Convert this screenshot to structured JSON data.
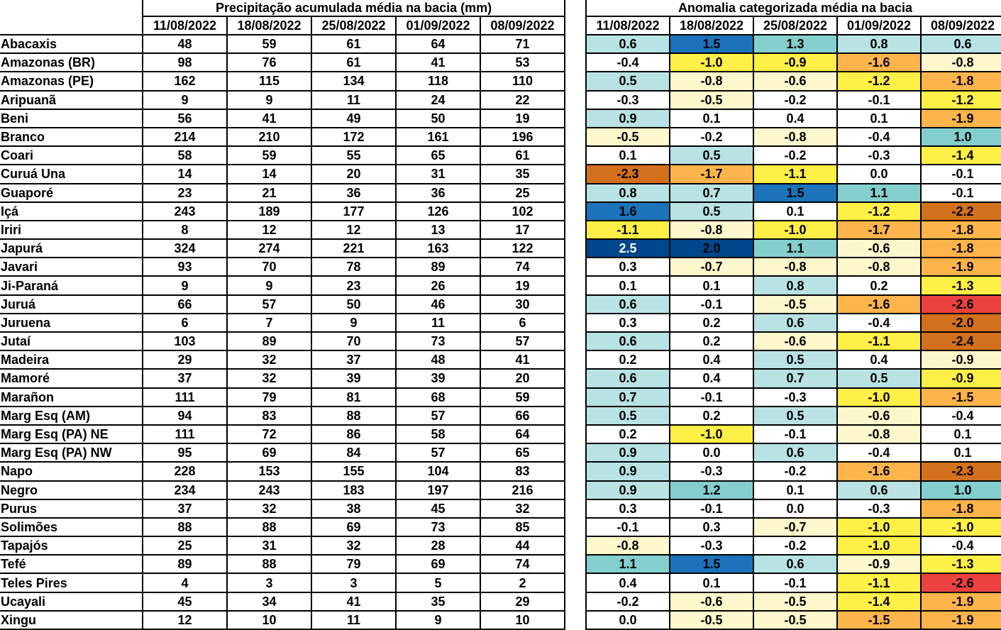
{
  "left_table": {
    "title": "Precipitação acumulada média na bacia (mm)",
    "dates": [
      "11/08/2022",
      "18/08/2022",
      "25/08/2022",
      "01/09/2022",
      "08/09/2022"
    ]
  },
  "right_table": {
    "title": "Anomalia categorizada média na bacia",
    "dates": [
      "11/08/2022",
      "18/08/2022",
      "25/08/2022",
      "01/09/2022",
      "08/09/2022"
    ]
  },
  "colors": {
    "white": "#ffffff",
    "lightyellow": "#fff8cc",
    "yellow": "#ffef47",
    "orange": "#fcb44b",
    "darkorange": "#d2701c",
    "red": "#ec423f",
    "lightcyan": "#b8e2e3",
    "cyan": "#84cece",
    "blue": "#1c73b9",
    "navy": "#00468a"
  },
  "rows": [
    {
      "name": "Abacaxis",
      "precip": [
        "48",
        "59",
        "61",
        "64",
        "71"
      ],
      "anom": [
        "0.6",
        "1.5",
        "1.3",
        "0.8",
        "0.6"
      ],
      "cls": [
        "lightcyan",
        "blue",
        "cyan",
        "lightcyan",
        "lightcyan"
      ]
    },
    {
      "name": "Amazonas (BR)",
      "precip": [
        "98",
        "76",
        "61",
        "41",
        "53"
      ],
      "anom": [
        "-0.4",
        "-1.0",
        "-0.9",
        "-1.6",
        "-0.8"
      ],
      "cls": [
        "white",
        "yellow",
        "yellow",
        "orange",
        "lightyellow"
      ]
    },
    {
      "name": "Amazonas (PE)",
      "precip": [
        "162",
        "115",
        "134",
        "118",
        "110"
      ],
      "anom": [
        "0.5",
        "-0.8",
        "-0.6",
        "-1.2",
        "-1.8"
      ],
      "cls": [
        "lightcyan",
        "lightyellow",
        "lightyellow",
        "yellow",
        "orange"
      ]
    },
    {
      "name": "Aripuanã",
      "precip": [
        "9",
        "9",
        "11",
        "24",
        "22"
      ],
      "anom": [
        "-0.3",
        "-0.5",
        "-0.2",
        "-0.1",
        "-1.2"
      ],
      "cls": [
        "white",
        "lightyellow",
        "white",
        "white",
        "yellow"
      ]
    },
    {
      "name": "Beni",
      "precip": [
        "56",
        "41",
        "49",
        "50",
        "19"
      ],
      "anom": [
        "0.9",
        "0.1",
        "0.4",
        "0.1",
        "-1.9"
      ],
      "cls": [
        "lightcyan",
        "white",
        "white",
        "white",
        "orange"
      ]
    },
    {
      "name": "Branco",
      "precip": [
        "214",
        "210",
        "172",
        "161",
        "196"
      ],
      "anom": [
        "-0.5",
        "-0.2",
        "-0.8",
        "-0.4",
        "1.0"
      ],
      "cls": [
        "lightyellow",
        "white",
        "lightyellow",
        "white",
        "cyan"
      ]
    },
    {
      "name": "Coari",
      "precip": [
        "58",
        "59",
        "55",
        "65",
        "61"
      ],
      "anom": [
        "0.1",
        "0.5",
        "-0.2",
        "-0.3",
        "-1.4"
      ],
      "cls": [
        "white",
        "lightcyan",
        "white",
        "white",
        "yellow"
      ]
    },
    {
      "name": "Curuá Una",
      "precip": [
        "14",
        "14",
        "20",
        "31",
        "35"
      ],
      "anom": [
        "-2.3",
        "-1.7",
        "-1.1",
        "0.0",
        "-0.1"
      ],
      "cls": [
        "darkorange",
        "orange",
        "yellow",
        "white",
        "white"
      ]
    },
    {
      "name": "Guaporé",
      "precip": [
        "23",
        "21",
        "36",
        "36",
        "25"
      ],
      "anom": [
        "0.8",
        "0.7",
        "1.5",
        "1.1",
        "-0.1"
      ],
      "cls": [
        "lightcyan",
        "lightcyan",
        "blue",
        "cyan",
        "white"
      ]
    },
    {
      "name": "Içá",
      "precip": [
        "243",
        "189",
        "177",
        "126",
        "102"
      ],
      "anom": [
        "1.6",
        "0.5",
        "0.1",
        "-1.2",
        "-2.2"
      ],
      "cls": [
        "blue",
        "lightcyan",
        "white",
        "yellow",
        "darkorange"
      ]
    },
    {
      "name": "Iriri",
      "precip": [
        "8",
        "12",
        "12",
        "13",
        "17"
      ],
      "anom": [
        "-1.1",
        "-0.8",
        "-1.0",
        "-1.7",
        "-1.8"
      ],
      "cls": [
        "yellow",
        "lightyellow",
        "yellow",
        "orange",
        "orange"
      ]
    },
    {
      "name": "Japurá",
      "precip": [
        "324",
        "274",
        "221",
        "163",
        "122"
      ],
      "anom": [
        "2.5",
        "2.0",
        "1.1",
        "-0.6",
        "-1.8"
      ],
      "cls": [
        "navy",
        "navy",
        "cyan",
        "lightyellow",
        "orange"
      ]
    },
    {
      "name": "Javari",
      "precip": [
        "93",
        "70",
        "78",
        "89",
        "74"
      ],
      "anom": [
        "0.3",
        "-0.7",
        "-0.8",
        "-0.8",
        "-1.9"
      ],
      "cls": [
        "white",
        "lightyellow",
        "lightyellow",
        "lightyellow",
        "orange"
      ]
    },
    {
      "name": "Ji-Paraná",
      "precip": [
        "9",
        "9",
        "23",
        "26",
        "19"
      ],
      "anom": [
        "0.1",
        "0.1",
        "0.8",
        "0.2",
        "-1.3"
      ],
      "cls": [
        "white",
        "white",
        "lightcyan",
        "white",
        "yellow"
      ]
    },
    {
      "name": "Juruá",
      "precip": [
        "66",
        "57",
        "50",
        "46",
        "30"
      ],
      "anom": [
        "0.6",
        "-0.1",
        "-0.5",
        "-1.6",
        "-2.6"
      ],
      "cls": [
        "lightcyan",
        "white",
        "lightyellow",
        "orange",
        "red"
      ]
    },
    {
      "name": "Juruena",
      "precip": [
        "6",
        "7",
        "9",
        "11",
        "6"
      ],
      "anom": [
        "0.3",
        "0.2",
        "0.6",
        "-0.4",
        "-2.0"
      ],
      "cls": [
        "white",
        "white",
        "lightcyan",
        "white",
        "darkorange"
      ]
    },
    {
      "name": "Jutaí",
      "precip": [
        "103",
        "89",
        "70",
        "73",
        "57"
      ],
      "anom": [
        "0.6",
        "0.2",
        "-0.6",
        "-1.1",
        "-2.4"
      ],
      "cls": [
        "lightcyan",
        "white",
        "lightyellow",
        "yellow",
        "darkorange"
      ]
    },
    {
      "name": "Madeira",
      "precip": [
        "29",
        "32",
        "37",
        "48",
        "41"
      ],
      "anom": [
        "0.2",
        "0.4",
        "0.5",
        "0.4",
        "-0.9"
      ],
      "cls": [
        "white",
        "white",
        "lightcyan",
        "white",
        "lightyellow"
      ]
    },
    {
      "name": "Mamoré",
      "precip": [
        "37",
        "32",
        "39",
        "39",
        "20"
      ],
      "anom": [
        "0.6",
        "0.4",
        "0.7",
        "0.5",
        "-0.9"
      ],
      "cls": [
        "lightcyan",
        "white",
        "lightcyan",
        "lightcyan",
        "yellow"
      ]
    },
    {
      "name": "Marañon",
      "precip": [
        "111",
        "79",
        "81",
        "68",
        "59"
      ],
      "anom": [
        "0.7",
        "-0.1",
        "-0.3",
        "-1.0",
        "-1.5"
      ],
      "cls": [
        "lightcyan",
        "white",
        "white",
        "yellow",
        "orange"
      ]
    },
    {
      "name": "Marg Esq (AM)",
      "precip": [
        "94",
        "83",
        "88",
        "57",
        "66"
      ],
      "anom": [
        "0.5",
        "0.2",
        "0.5",
        "-0.6",
        "-0.4"
      ],
      "cls": [
        "lightcyan",
        "white",
        "lightcyan",
        "lightyellow",
        "white"
      ]
    },
    {
      "name": "Marg Esq (PA) NE",
      "precip": [
        "111",
        "72",
        "86",
        "58",
        "64"
      ],
      "anom": [
        "0.2",
        "-1.0",
        "-0.1",
        "-0.8",
        "0.1"
      ],
      "cls": [
        "white",
        "yellow",
        "white",
        "lightyellow",
        "white"
      ]
    },
    {
      "name": "Marg Esq (PA) NW",
      "precip": [
        "95",
        "69",
        "84",
        "57",
        "65"
      ],
      "anom": [
        "0.9",
        "0.0",
        "0.6",
        "-0.4",
        "0.1"
      ],
      "cls": [
        "lightcyan",
        "white",
        "lightcyan",
        "white",
        "white"
      ]
    },
    {
      "name": "Napo",
      "precip": [
        "228",
        "153",
        "155",
        "104",
        "83"
      ],
      "anom": [
        "0.9",
        "-0.3",
        "-0.2",
        "-1.6",
        "-2.3"
      ],
      "cls": [
        "lightcyan",
        "white",
        "white",
        "orange",
        "darkorange"
      ]
    },
    {
      "name": "Negro",
      "precip": [
        "234",
        "243",
        "183",
        "197",
        "216"
      ],
      "anom": [
        "0.9",
        "1.2",
        "0.1",
        "0.6",
        "1.0"
      ],
      "cls": [
        "lightcyan",
        "cyan",
        "white",
        "lightcyan",
        "cyan"
      ]
    },
    {
      "name": "Purus",
      "precip": [
        "37",
        "32",
        "38",
        "45",
        "32"
      ],
      "anom": [
        "0.3",
        "-0.1",
        "0.0",
        "-0.3",
        "-1.8"
      ],
      "cls": [
        "white",
        "white",
        "white",
        "white",
        "orange"
      ]
    },
    {
      "name": "Solimões",
      "precip": [
        "88",
        "88",
        "69",
        "73",
        "85"
      ],
      "anom": [
        "-0.1",
        "0.3",
        "-0.7",
        "-1.0",
        "-1.0"
      ],
      "cls": [
        "white",
        "white",
        "lightyellow",
        "yellow",
        "yellow"
      ]
    },
    {
      "name": "Tapajós",
      "precip": [
        "25",
        "31",
        "32",
        "28",
        "44"
      ],
      "anom": [
        "-0.8",
        "-0.3",
        "-0.2",
        "-1.0",
        "-0.4"
      ],
      "cls": [
        "lightyellow",
        "white",
        "white",
        "yellow",
        "white"
      ]
    },
    {
      "name": "Tefé",
      "precip": [
        "89",
        "88",
        "79",
        "69",
        "74"
      ],
      "anom": [
        "1.1",
        "1.5",
        "0.6",
        "-0.9",
        "-1.3"
      ],
      "cls": [
        "cyan",
        "blue",
        "lightcyan",
        "lightyellow",
        "yellow"
      ]
    },
    {
      "name": "Teles Pires",
      "precip": [
        "4",
        "3",
        "3",
        "5",
        "2"
      ],
      "anom": [
        "0.4",
        "0.1",
        "-0.1",
        "-1.1",
        "-2.6"
      ],
      "cls": [
        "white",
        "white",
        "white",
        "yellow",
        "red"
      ]
    },
    {
      "name": "Ucayali",
      "precip": [
        "45",
        "34",
        "41",
        "35",
        "29"
      ],
      "anom": [
        "-0.2",
        "-0.6",
        "-0.5",
        "-1.4",
        "-1.9"
      ],
      "cls": [
        "white",
        "lightyellow",
        "lightyellow",
        "yellow",
        "orange"
      ]
    },
    {
      "name": "Xingu",
      "precip": [
        "12",
        "10",
        "11",
        "9",
        "10"
      ],
      "anom": [
        "0.0",
        "-0.5",
        "-0.5",
        "-1.5",
        "-1.9"
      ],
      "cls": [
        "white",
        "lightyellow",
        "lightyellow",
        "orange",
        "orange"
      ]
    }
  ]
}
